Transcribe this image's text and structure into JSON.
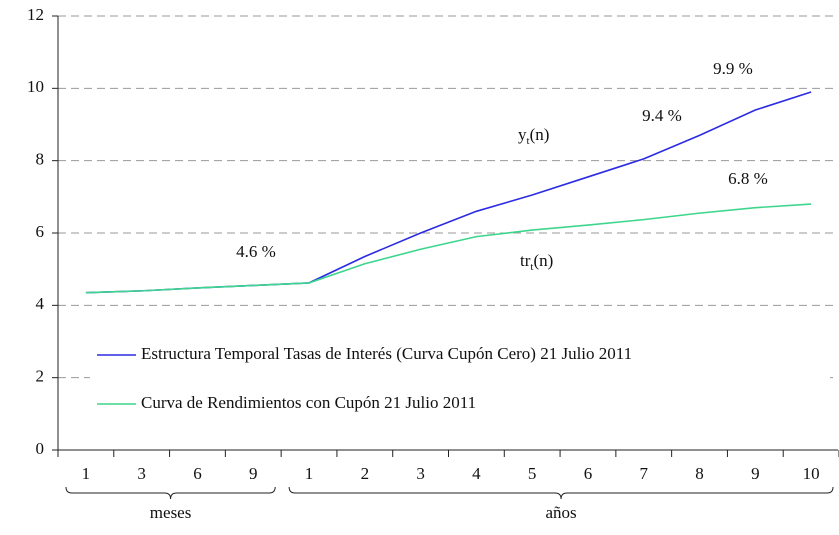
{
  "chart_data": {
    "type": "line",
    "categories": [
      "1",
      "3",
      "6",
      "9",
      "1",
      "2",
      "3",
      "4",
      "5",
      "6",
      "7",
      "8",
      "9",
      "10"
    ],
    "groups": [
      "meses",
      "años"
    ],
    "series": [
      {
        "name": "Estructura Temporal Tasas de Interés (Curva Cupón Cero) 21 Julio 2011",
        "color": "#2b2be3",
        "values": [
          4.35,
          4.4,
          4.48,
          4.55,
          4.62,
          5.35,
          6.0,
          6.6,
          7.05,
          7.55,
          8.05,
          8.7,
          9.4,
          9.9
        ]
      },
      {
        "name": "Curva de Rendimientos con Cupón 21 Julio 2011",
        "color": "#3dd68c",
        "values": [
          4.35,
          4.4,
          4.48,
          4.55,
          4.62,
          5.15,
          5.55,
          5.9,
          6.08,
          6.22,
          6.37,
          6.55,
          6.7,
          6.8
        ]
      }
    ],
    "annotations": [
      {
        "parts": [
          "9.9 %"
        ]
      },
      {
        "parts": [
          "9.4 %"
        ]
      },
      {
        "parts": [
          "y",
          "t",
          "(n)"
        ]
      },
      {
        "parts": [
          "6.8 %"
        ]
      },
      {
        "parts": [
          "4.6 %"
        ]
      },
      {
        "parts": [
          "tr",
          "t",
          "(n)"
        ]
      }
    ],
    "ylim": [
      0,
      12
    ],
    "yticks": [
      0,
      2,
      4,
      6,
      8,
      10,
      12
    ],
    "grid": true
  }
}
